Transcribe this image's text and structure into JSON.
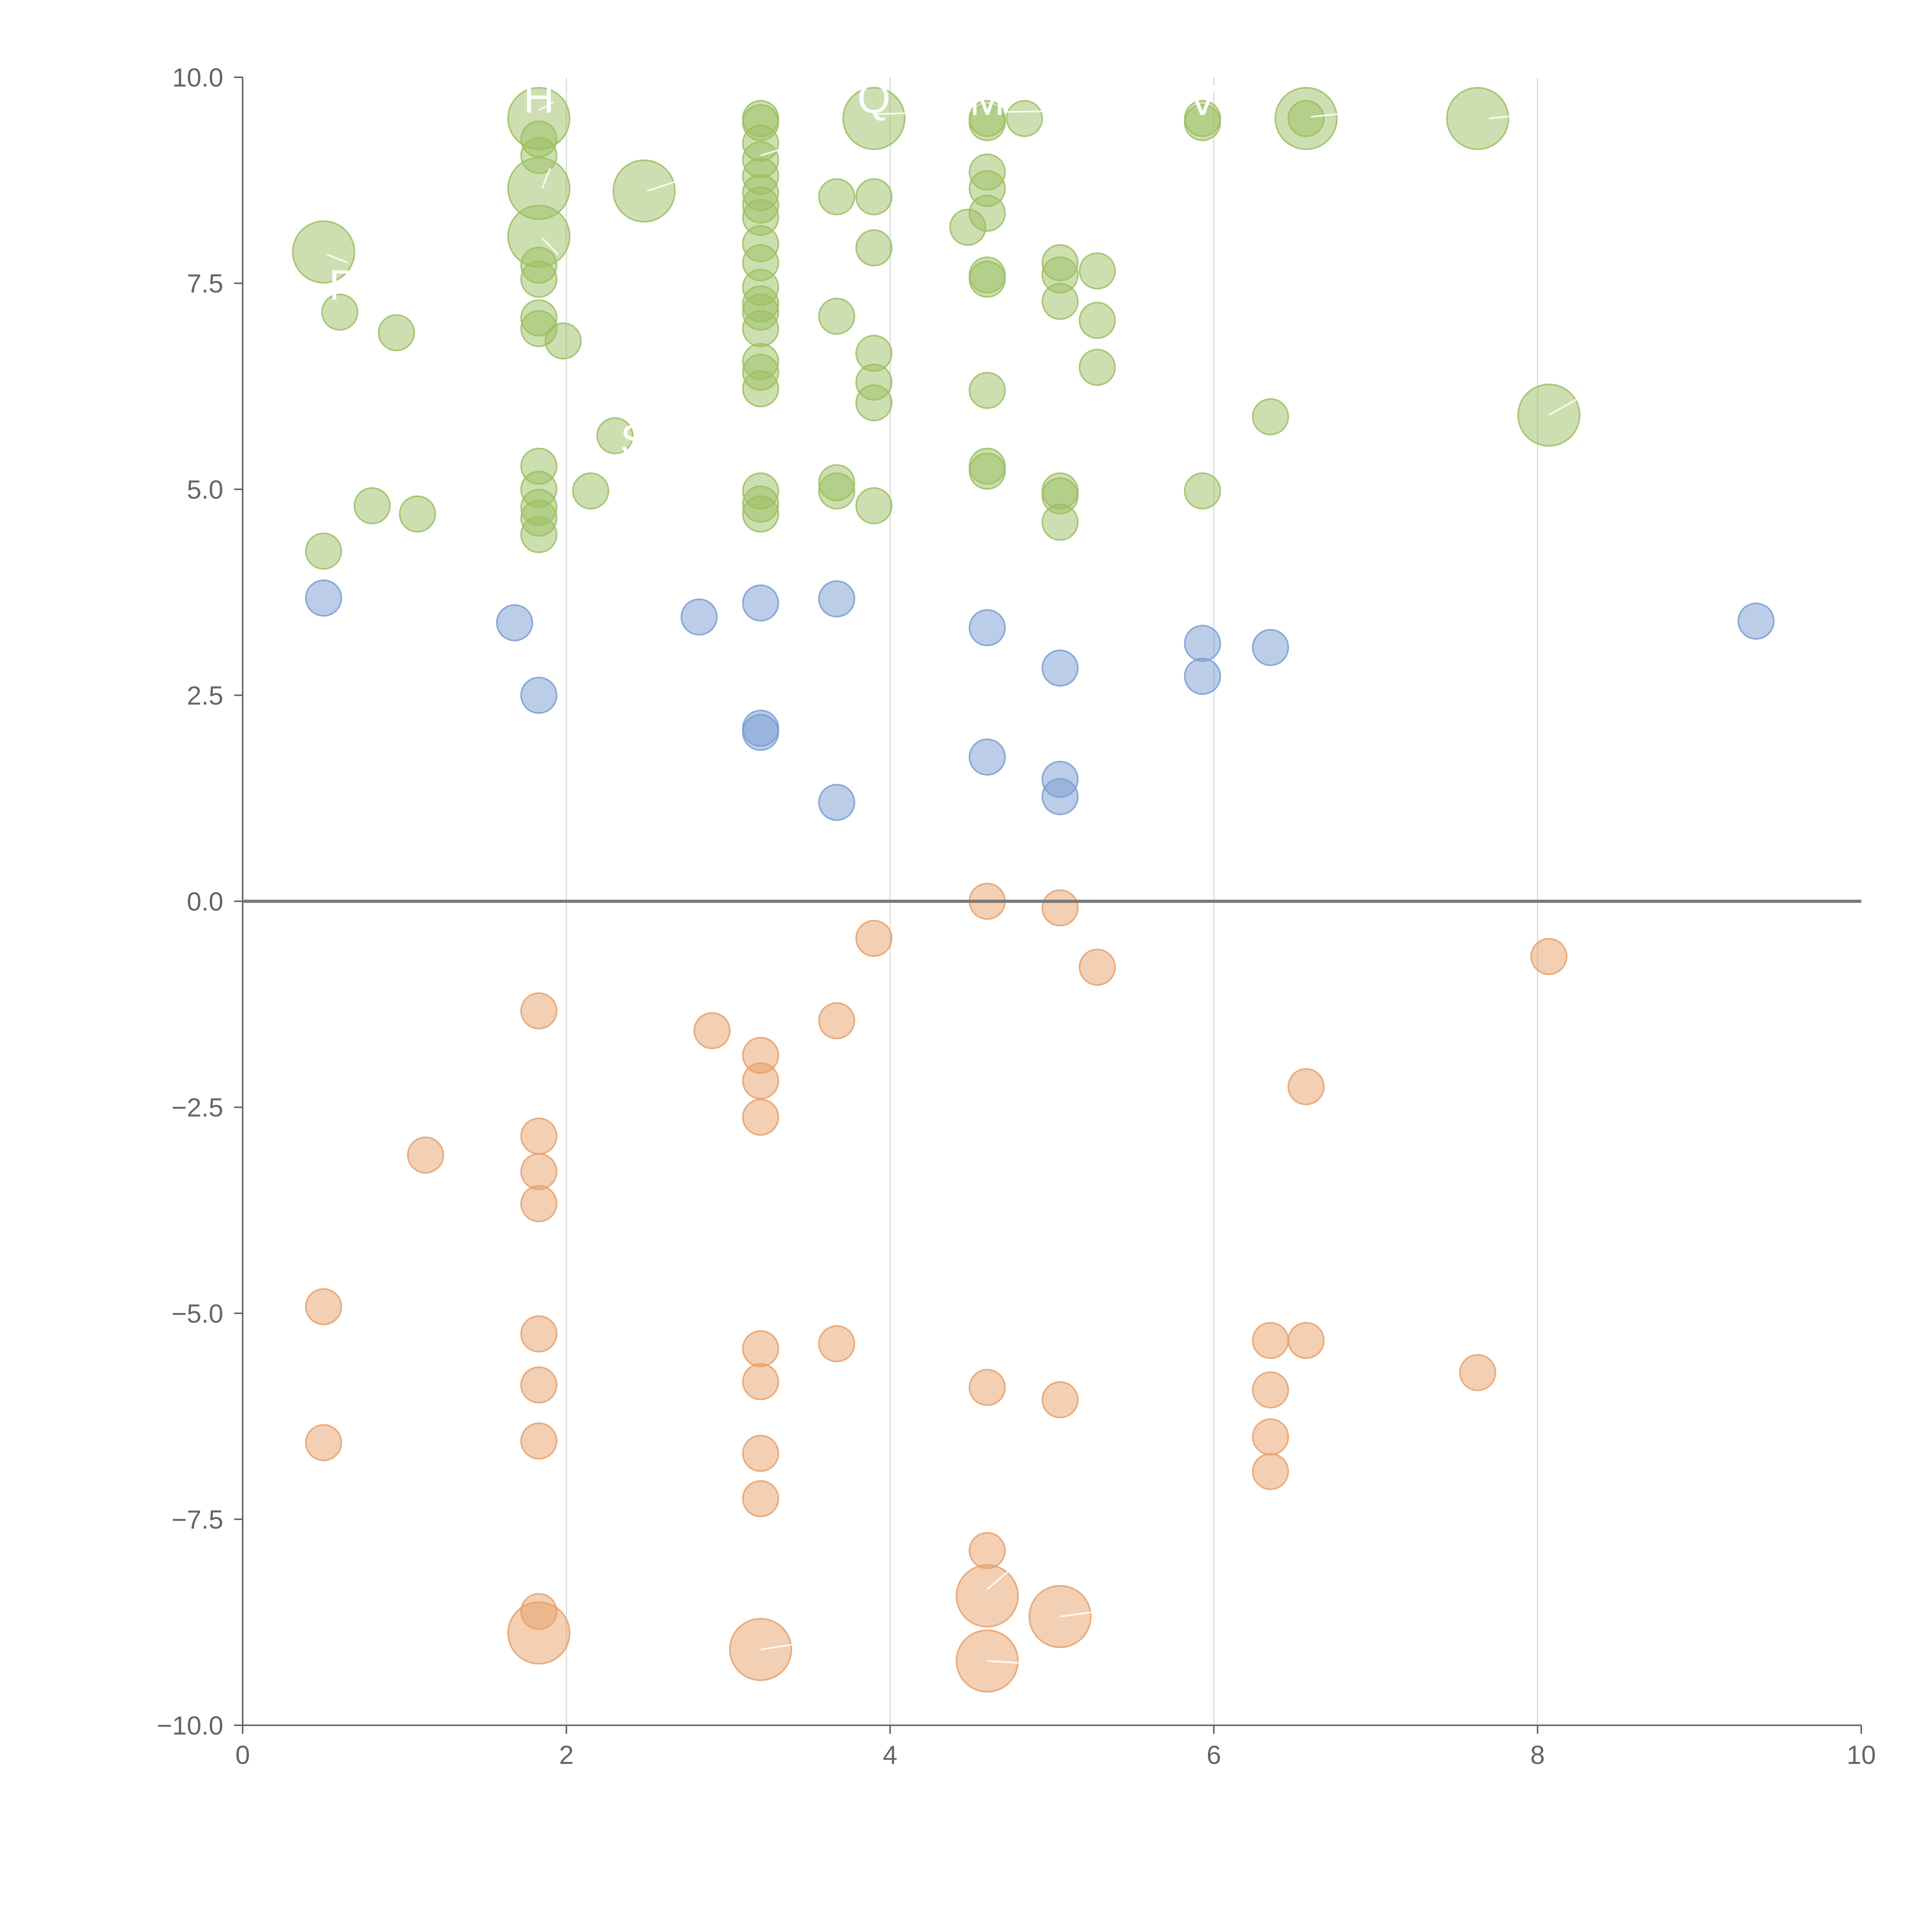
{
  "chart_data": {
    "type": "scatter",
    "title": "",
    "xlabel": "",
    "ylabel": "",
    "xlim": [
      0,
      10
    ],
    "ylim": [
      -10,
      10
    ],
    "xticks": [
      "0",
      "2",
      "4",
      "6",
      "8",
      "10"
    ],
    "yticks": [
      "10.0",
      "7.5",
      "5.0",
      "2.5",
      "0.0",
      "−2.5",
      "−5.0",
      "−7.5",
      "−10.0"
    ],
    "vertical_gridlines_at": [
      2,
      4,
      6,
      8
    ],
    "zero_line": true,
    "legend": "none",
    "colors": {
      "green": "#9bbf62",
      "blue": "#7a9cd2",
      "orange": "#e8a068"
    },
    "series": [
      {
        "name": "green",
        "points": [
          {
            "x": 1.83,
            "y": 9.5,
            "size": 3.0
          },
          {
            "x": 3.9,
            "y": 9.5,
            "size": 3.0
          },
          {
            "x": 6.57,
            "y": 9.5,
            "size": 3.0
          },
          {
            "x": 7.63,
            "y": 9.5,
            "size": 3.0
          },
          {
            "x": 3.2,
            "y": 9.5,
            "size": 1
          },
          {
            "x": 3.2,
            "y": 9.45,
            "size": 1
          },
          {
            "x": 4.6,
            "y": 9.5,
            "size": 1
          },
          {
            "x": 4.6,
            "y": 9.45,
            "size": 1
          },
          {
            "x": 4.83,
            "y": 9.5,
            "size": 1
          },
          {
            "x": 5.93,
            "y": 9.5,
            "size": 1
          },
          {
            "x": 5.93,
            "y": 9.45,
            "size": 1
          },
          {
            "x": 6.57,
            "y": 9.5,
            "size": 1
          },
          {
            "x": 1.83,
            "y": 9.25,
            "size": 1
          },
          {
            "x": 1.83,
            "y": 9.05,
            "size": 1
          },
          {
            "x": 3.2,
            "y": 9.2,
            "size": 1
          },
          {
            "x": 3.2,
            "y": 9.0,
            "size": 1
          },
          {
            "x": 3.2,
            "y": 8.8,
            "size": 1
          },
          {
            "x": 1.83,
            "y": 8.65,
            "size": 3.0
          },
          {
            "x": 2.48,
            "y": 8.62,
            "size": 3.0
          },
          {
            "x": 1.83,
            "y": 8.07,
            "size": 3.0
          },
          {
            "x": 0.5,
            "y": 7.88,
            "size": 3.0
          },
          {
            "x": 8.07,
            "y": 5.9,
            "size": 3.0
          },
          {
            "x": 3.2,
            "y": 8.6,
            "size": 1
          },
          {
            "x": 3.2,
            "y": 8.45,
            "size": 1
          },
          {
            "x": 3.2,
            "y": 8.3,
            "size": 1
          },
          {
            "x": 3.67,
            "y": 8.55,
            "size": 1
          },
          {
            "x": 3.9,
            "y": 8.55,
            "size": 1
          },
          {
            "x": 4.6,
            "y": 8.85,
            "size": 1
          },
          {
            "x": 4.6,
            "y": 8.65,
            "size": 1
          },
          {
            "x": 4.6,
            "y": 8.35,
            "size": 1
          },
          {
            "x": 4.48,
            "y": 8.18,
            "size": 1
          },
          {
            "x": 3.2,
            "y": 7.98,
            "size": 1
          },
          {
            "x": 3.2,
            "y": 7.75,
            "size": 1
          },
          {
            "x": 3.2,
            "y": 7.45,
            "size": 1
          },
          {
            "x": 3.2,
            "y": 7.25,
            "size": 1
          },
          {
            "x": 3.2,
            "y": 7.15,
            "size": 1
          },
          {
            "x": 3.2,
            "y": 6.95,
            "size": 1
          },
          {
            "x": 3.9,
            "y": 7.93,
            "size": 1
          },
          {
            "x": 4.6,
            "y": 7.6,
            "size": 1
          },
          {
            "x": 4.6,
            "y": 7.55,
            "size": 1
          },
          {
            "x": 5.05,
            "y": 7.75,
            "size": 1
          },
          {
            "x": 5.05,
            "y": 7.6,
            "size": 1
          },
          {
            "x": 5.28,
            "y": 7.65,
            "size": 1
          },
          {
            "x": 5.05,
            "y": 7.28,
            "size": 1
          },
          {
            "x": 5.28,
            "y": 7.05,
            "size": 1
          },
          {
            "x": 1.83,
            "y": 7.72,
            "size": 1
          },
          {
            "x": 1.83,
            "y": 7.55,
            "size": 1
          },
          {
            "x": 1.83,
            "y": 7.08,
            "size": 1
          },
          {
            "x": 1.83,
            "y": 6.95,
            "size": 1
          },
          {
            "x": 1.98,
            "y": 6.8,
            "size": 1
          },
          {
            "x": 0.6,
            "y": 7.15,
            "size": 1
          },
          {
            "x": 0.95,
            "y": 6.9,
            "size": 1
          },
          {
            "x": 3.67,
            "y": 7.1,
            "size": 1
          },
          {
            "x": 3.2,
            "y": 6.55,
            "size": 1
          },
          {
            "x": 3.2,
            "y": 6.42,
            "size": 1
          },
          {
            "x": 3.2,
            "y": 6.22,
            "size": 1
          },
          {
            "x": 3.9,
            "y": 6.65,
            "size": 1
          },
          {
            "x": 3.9,
            "y": 6.3,
            "size": 1
          },
          {
            "x": 3.9,
            "y": 6.05,
            "size": 1
          },
          {
            "x": 4.6,
            "y": 6.2,
            "size": 1
          },
          {
            "x": 5.28,
            "y": 6.48,
            "size": 1
          },
          {
            "x": 6.35,
            "y": 5.88,
            "size": 1
          },
          {
            "x": 2.3,
            "y": 5.65,
            "size": 1
          },
          {
            "x": 1.83,
            "y": 5.28,
            "size": 1
          },
          {
            "x": 1.83,
            "y": 5.0,
            "size": 1
          },
          {
            "x": 1.83,
            "y": 4.78,
            "size": 1
          },
          {
            "x": 1.83,
            "y": 4.65,
            "size": 1
          },
          {
            "x": 1.83,
            "y": 4.45,
            "size": 1
          },
          {
            "x": 2.15,
            "y": 4.98,
            "size": 1
          },
          {
            "x": 0.8,
            "y": 4.8,
            "size": 1
          },
          {
            "x": 1.08,
            "y": 4.7,
            "size": 1
          },
          {
            "x": 0.5,
            "y": 4.25,
            "size": 1
          },
          {
            "x": 3.2,
            "y": 4.98,
            "size": 1
          },
          {
            "x": 3.2,
            "y": 4.82,
            "size": 1
          },
          {
            "x": 3.2,
            "y": 4.7,
            "size": 1
          },
          {
            "x": 3.67,
            "y": 5.08,
            "size": 1
          },
          {
            "x": 3.67,
            "y": 4.98,
            "size": 1
          },
          {
            "x": 3.9,
            "y": 4.8,
            "size": 1
          },
          {
            "x": 4.6,
            "y": 5.28,
            "size": 1
          },
          {
            "x": 4.6,
            "y": 5.22,
            "size": 1
          },
          {
            "x": 5.05,
            "y": 4.98,
            "size": 1
          },
          {
            "x": 5.05,
            "y": 4.92,
            "size": 1
          },
          {
            "x": 5.05,
            "y": 4.6,
            "size": 1
          },
          {
            "x": 5.93,
            "y": 4.98,
            "size": 1
          }
        ]
      },
      {
        "name": "blue",
        "points": [
          {
            "x": 0.5,
            "y": 3.68,
            "size": 1
          },
          {
            "x": 1.68,
            "y": 3.38,
            "size": 1
          },
          {
            "x": 2.82,
            "y": 3.45,
            "size": 1
          },
          {
            "x": 3.2,
            "y": 3.62,
            "size": 1
          },
          {
            "x": 3.67,
            "y": 3.67,
            "size": 1
          },
          {
            "x": 4.6,
            "y": 3.32,
            "size": 1
          },
          {
            "x": 5.93,
            "y": 3.13,
            "size": 1
          },
          {
            "x": 6.35,
            "y": 3.08,
            "size": 1
          },
          {
            "x": 9.35,
            "y": 3.4,
            "size": 1
          },
          {
            "x": 5.05,
            "y": 2.83,
            "size": 1
          },
          {
            "x": 5.93,
            "y": 2.73,
            "size": 1
          },
          {
            "x": 1.83,
            "y": 2.5,
            "size": 1
          },
          {
            "x": 3.2,
            "y": 2.1,
            "size": 1
          },
          {
            "x": 3.2,
            "y": 2.05,
            "size": 1
          },
          {
            "x": 4.6,
            "y": 1.75,
            "size": 1
          },
          {
            "x": 5.05,
            "y": 1.48,
            "size": 1
          },
          {
            "x": 5.05,
            "y": 1.27,
            "size": 1
          },
          {
            "x": 3.67,
            "y": 1.2,
            "size": 1
          }
        ]
      },
      {
        "name": "orange",
        "points": [
          {
            "x": 4.6,
            "y": 0.0,
            "size": 1
          },
          {
            "x": 5.05,
            "y": -0.08,
            "size": 1
          },
          {
            "x": 3.9,
            "y": -0.45,
            "size": 1
          },
          {
            "x": 8.07,
            "y": -0.67,
            "size": 1
          },
          {
            "x": 5.28,
            "y": -0.8,
            "size": 1
          },
          {
            "x": 1.83,
            "y": -1.33,
            "size": 1
          },
          {
            "x": 3.67,
            "y": -1.45,
            "size": 1
          },
          {
            "x": 2.9,
            "y": -1.57,
            "size": 1
          },
          {
            "x": 3.2,
            "y": -1.87,
            "size": 1
          },
          {
            "x": 3.2,
            "y": -2.18,
            "size": 1
          },
          {
            "x": 6.57,
            "y": -2.25,
            "size": 1
          },
          {
            "x": 3.2,
            "y": -2.62,
            "size": 1
          },
          {
            "x": 1.83,
            "y": -2.85,
            "size": 1
          },
          {
            "x": 1.13,
            "y": -3.08,
            "size": 1
          },
          {
            "x": 1.83,
            "y": -3.28,
            "size": 1
          },
          {
            "x": 1.83,
            "y": -3.67,
            "size": 1
          },
          {
            "x": 0.5,
            "y": -4.92,
            "size": 1
          },
          {
            "x": 1.83,
            "y": -5.25,
            "size": 1
          },
          {
            "x": 6.35,
            "y": -5.33,
            "size": 1
          },
          {
            "x": 6.57,
            "y": -5.33,
            "size": 1
          },
          {
            "x": 3.67,
            "y": -5.37,
            "size": 1
          },
          {
            "x": 3.2,
            "y": -5.43,
            "size": 1
          },
          {
            "x": 7.63,
            "y": -5.72,
            "size": 1
          },
          {
            "x": 3.2,
            "y": -5.83,
            "size": 1
          },
          {
            "x": 1.83,
            "y": -5.87,
            "size": 1
          },
          {
            "x": 4.6,
            "y": -5.9,
            "size": 1
          },
          {
            "x": 6.35,
            "y": -5.93,
            "size": 1
          },
          {
            "x": 5.05,
            "y": -6.05,
            "size": 1
          },
          {
            "x": 6.35,
            "y": -6.5,
            "size": 1
          },
          {
            "x": 1.83,
            "y": -6.55,
            "size": 1
          },
          {
            "x": 0.5,
            "y": -6.57,
            "size": 1
          },
          {
            "x": 3.2,
            "y": -6.7,
            "size": 1
          },
          {
            "x": 6.35,
            "y": -6.92,
            "size": 1
          },
          {
            "x": 3.2,
            "y": -7.25,
            "size": 1
          },
          {
            "x": 4.6,
            "y": -7.88,
            "size": 1
          },
          {
            "x": 1.83,
            "y": -8.62,
            "size": 1
          },
          {
            "x": 4.6,
            "y": -8.43,
            "size": 3.0
          },
          {
            "x": 5.05,
            "y": -8.68,
            "size": 3.0
          },
          {
            "x": 1.83,
            "y": -8.88,
            "size": 3.0
          },
          {
            "x": 3.2,
            "y": -9.08,
            "size": 3.0
          },
          {
            "x": 4.6,
            "y": -9.22,
            "size": 3.0
          }
        ]
      }
    ],
    "annotations": [
      {
        "text": "H",
        "x": 1.83,
        "y": 9.75
      },
      {
        "text": "Q",
        "x": 3.9,
        "y": 9.75
      },
      {
        "text": "M",
        "x": 4.6,
        "y": 9.72
      },
      {
        "text": "V",
        "x": 5.93,
        "y": 9.72
      },
      {
        "text": "P",
        "x": 0.62,
        "y": 7.48
      },
      {
        "text": "S",
        "x": 2.42,
        "y": 5.6
      }
    ],
    "leader_lines": [
      {
        "from": [
          1.83,
          9.6
        ],
        "to": [
          1.92,
          9.7
        ]
      },
      {
        "from": [
          3.2,
          9.05
        ],
        "to": [
          3.6,
          9.3
        ]
      },
      {
        "from": [
          3.9,
          9.55
        ],
        "to": [
          4.3,
          9.58
        ]
      },
      {
        "from": [
          4.7,
          9.58
        ],
        "to": [
          5.5,
          9.6
        ]
      },
      {
        "from": [
          6.6,
          9.52
        ],
        "to": [
          7.0,
          9.6
        ]
      },
      {
        "from": [
          7.7,
          9.5
        ],
        "to": [
          7.95,
          9.55
        ]
      },
      {
        "from": [
          2.5,
          8.62
        ],
        "to": [
          2.7,
          8.75
        ]
      },
      {
        "from": [
          1.85,
          8.65
        ],
        "to": [
          1.9,
          8.9
        ]
      },
      {
        "from": [
          1.85,
          8.05
        ],
        "to": [
          1.95,
          7.85
        ]
      },
      {
        "from": [
          0.52,
          7.85
        ],
        "to": [
          0.65,
          7.75
        ]
      },
      {
        "from": [
          8.07,
          5.9
        ],
        "to": [
          8.25,
          6.1
        ]
      },
      {
        "from": [
          4.6,
          -8.35
        ],
        "to": [
          4.75,
          -8.1
        ]
      },
      {
        "from": [
          5.05,
          -8.68
        ],
        "to": [
          5.28,
          -8.62
        ]
      },
      {
        "from": [
          3.2,
          -9.08
        ],
        "to": [
          3.4,
          -9.02
        ]
      },
      {
        "from": [
          4.6,
          -9.22
        ],
        "to": [
          4.85,
          -9.25
        ]
      }
    ]
  }
}
